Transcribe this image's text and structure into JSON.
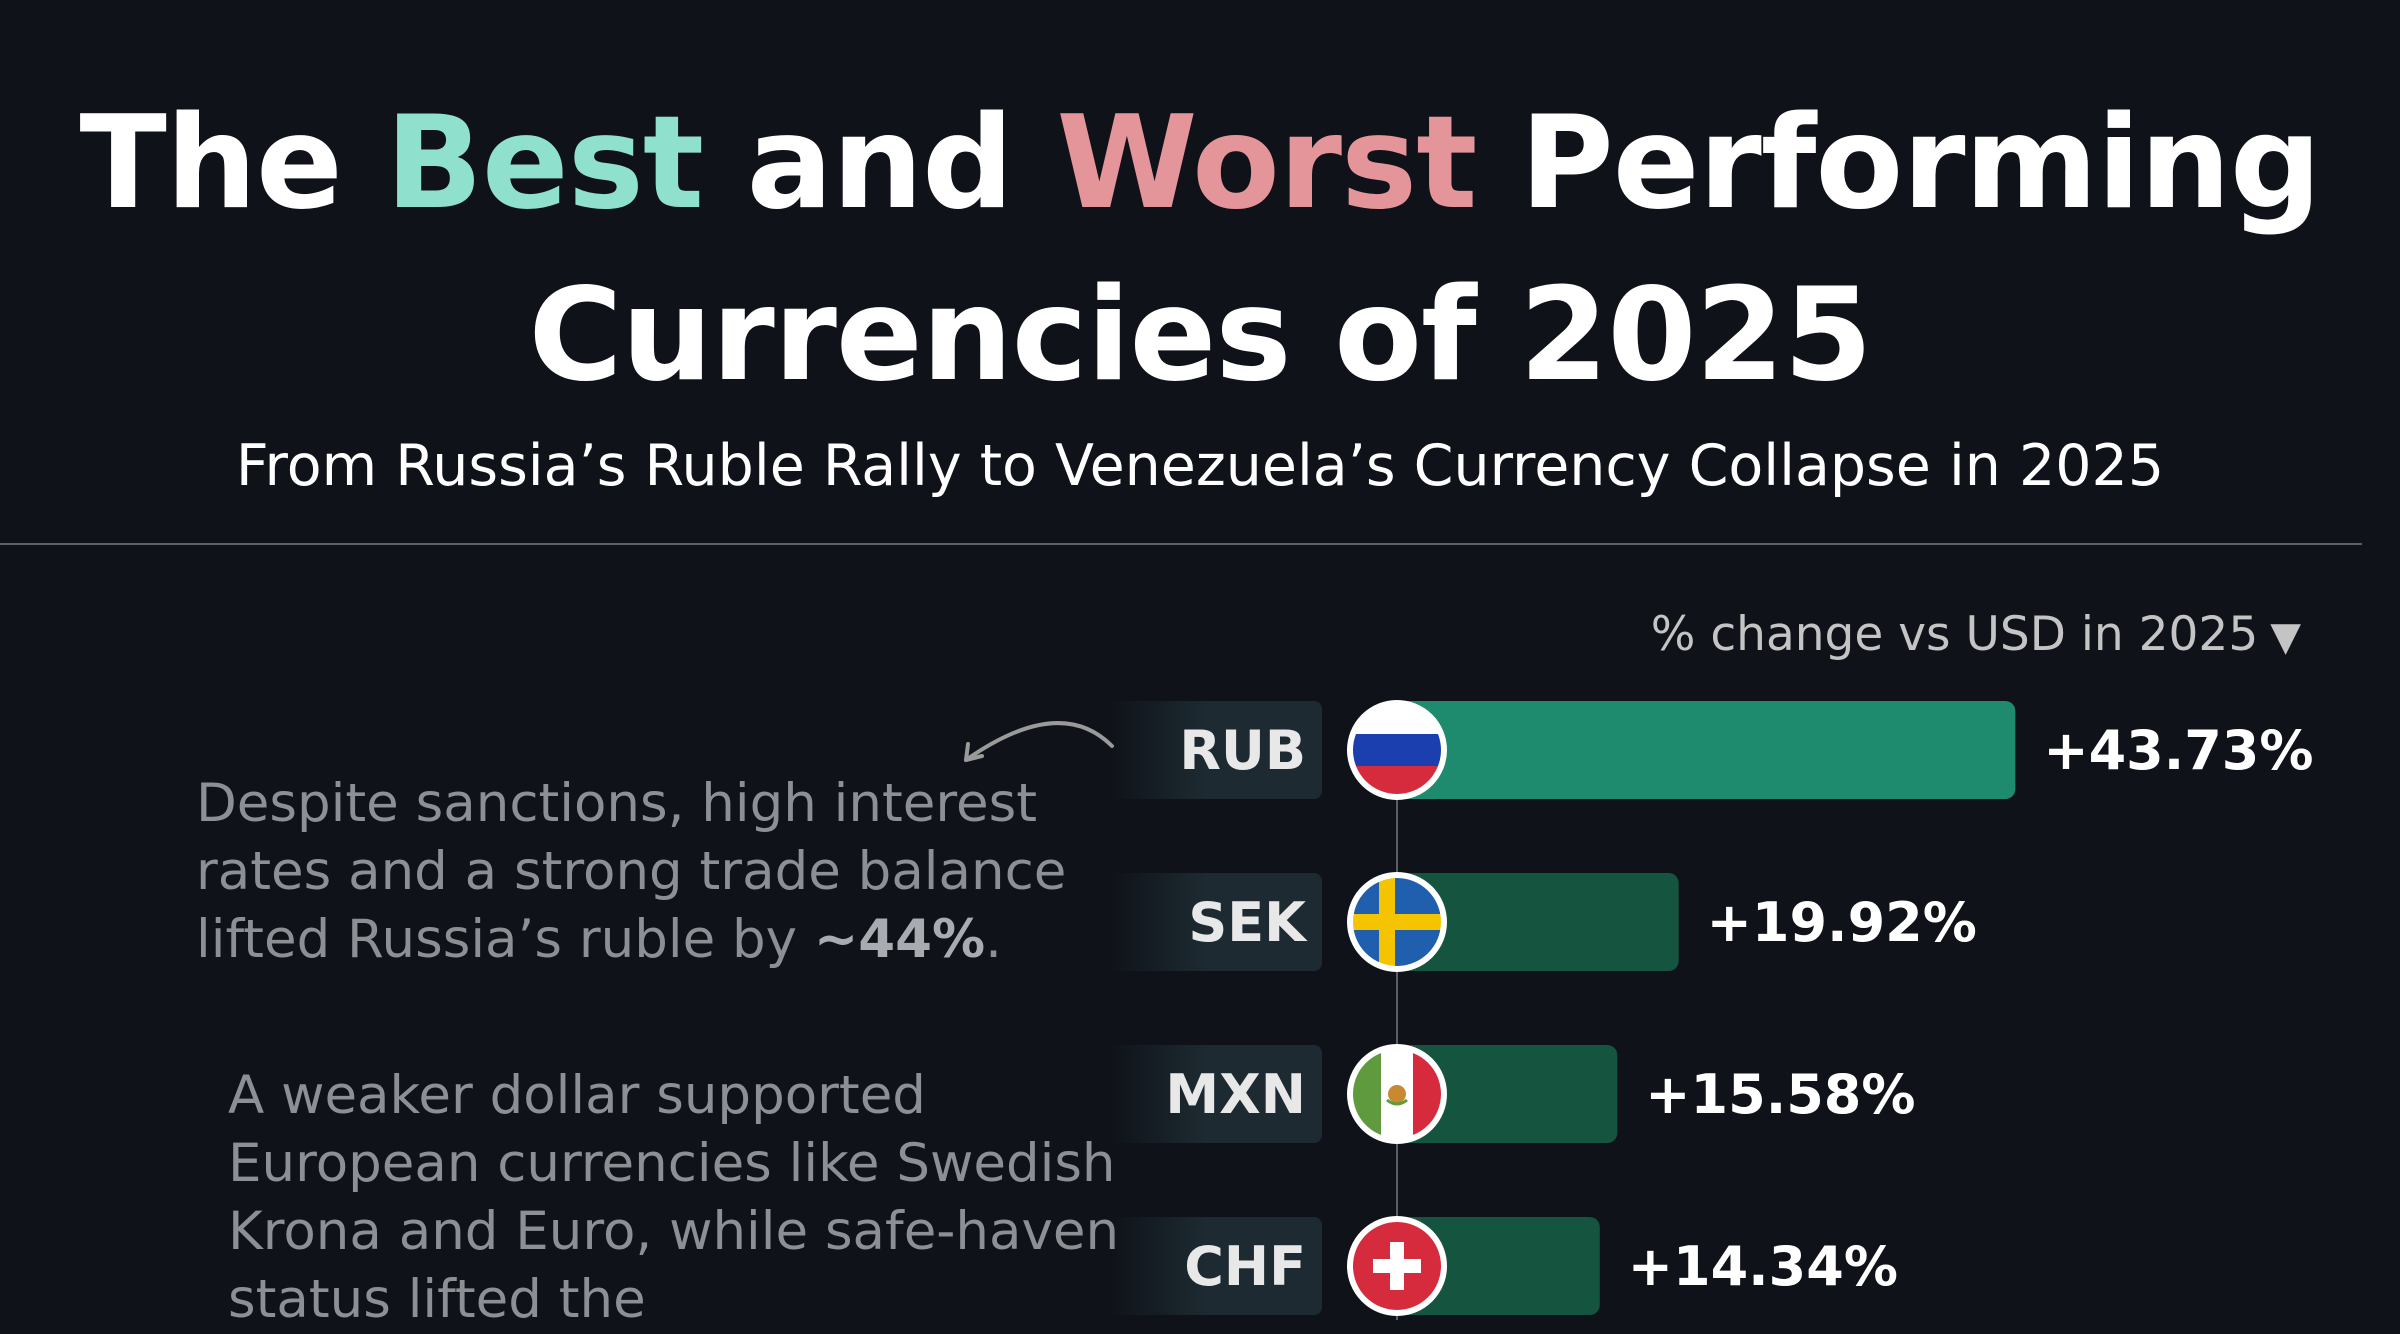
{
  "header": {
    "title_part1": "The",
    "title_best": "Best",
    "title_part2": "and",
    "title_worst": "Worst",
    "title_part3": "Performing",
    "title_line2": "Currencies of 2025",
    "subtitle": "From Russia’s Ruble Rally to Venezuela’s Currency Collapse in 2025"
  },
  "annotations": {
    "note1_text": "Despite sanctions, high interest rates and a strong trade balance lifted Russia’s ruble by ",
    "note1_bold": "~44%",
    "note1_end": ".",
    "note2_text": "A weaker dollar supported European currencies like Swedish Krona and Euro, while safe-haven status lifted the"
  },
  "colors": {
    "best": "#8fe0cc",
    "worst": "#e3959a",
    "bar_top": "#1e8a6e",
    "bar": "#15543f",
    "label_tab": "#1d2a31",
    "background": "#0f1219"
  },
  "chart_data": {
    "type": "bar",
    "orientation": "horizontal",
    "title": "The Best and Worst Performing Currencies of 2025",
    "axis_caption": "% change vs USD in 2025",
    "categories": [
      "RUB",
      "SEK",
      "MXN",
      "CHF"
    ],
    "values": [
      43.73,
      19.92,
      15.58,
      14.34
    ],
    "value_labels": [
      "+43.73%",
      "+19.92%",
      "+15.58%",
      "+14.34%"
    ],
    "flags": [
      "russia-flag-icon",
      "sweden-flag-icon",
      "mexico-flag-icon",
      "switzerland-flag-icon"
    ],
    "grid": false,
    "legend": "none"
  }
}
